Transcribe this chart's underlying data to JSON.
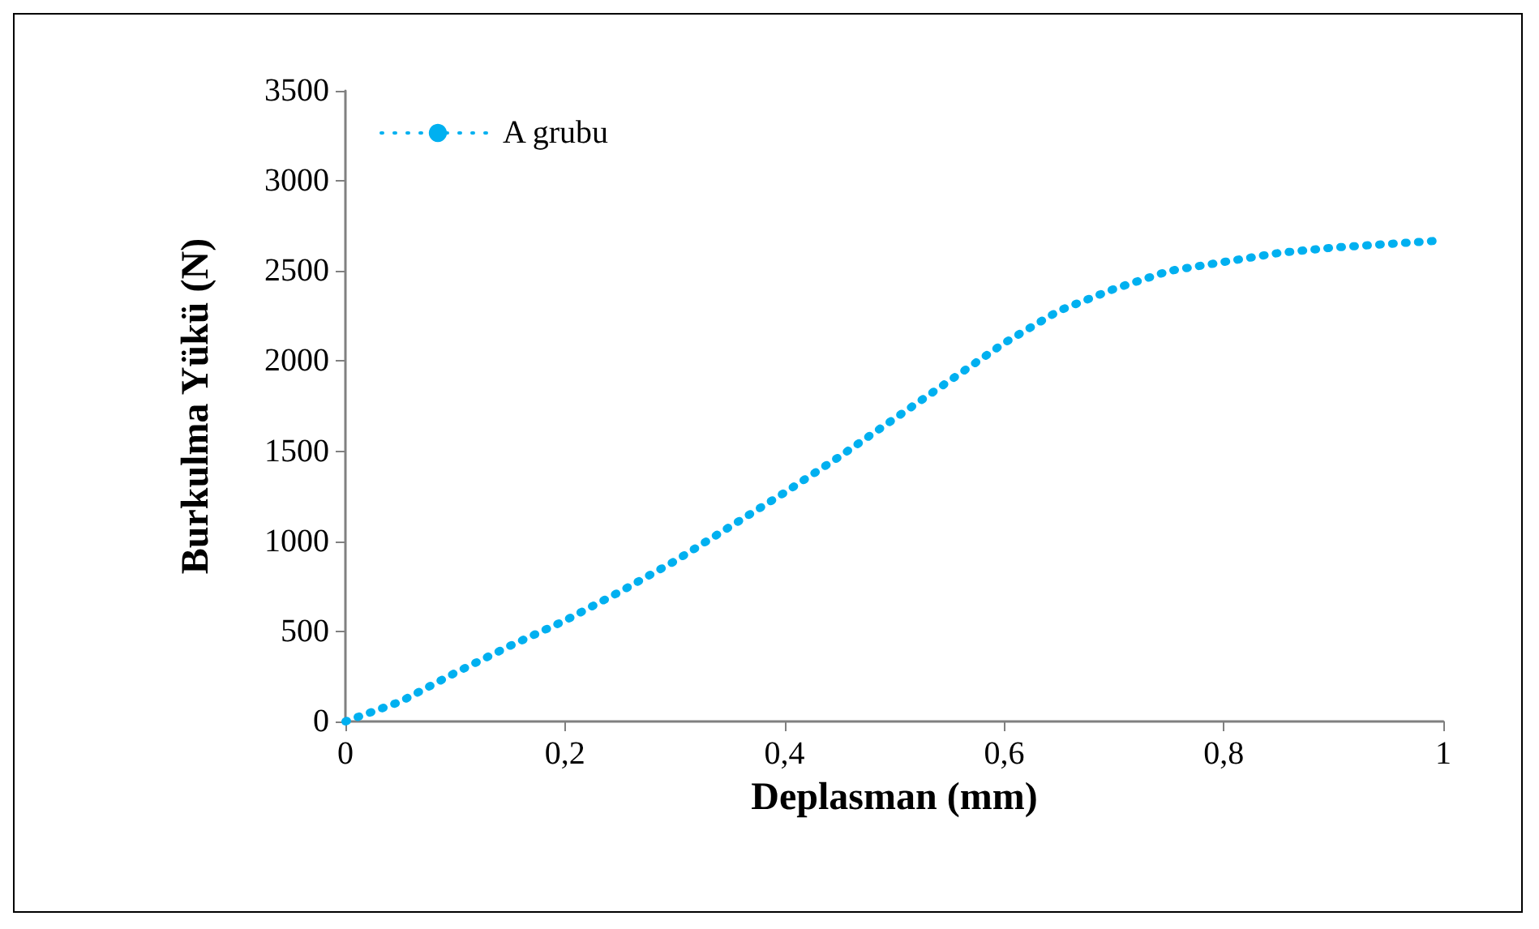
{
  "chart_data": {
    "type": "line",
    "xlabel": "Deplasman (mm)",
    "ylabel": "Burkulma Yükü (N)",
    "x": [
      0,
      0.05,
      0.1,
      0.15,
      0.2,
      0.25,
      0.3,
      0.35,
      0.4,
      0.45,
      0.5,
      0.55,
      0.6,
      0.65,
      0.7,
      0.75,
      0.8,
      0.85,
      0.9,
      0.95,
      1
    ],
    "series": [
      {
        "name": "A grubu",
        "color": "#00b0f0",
        "values": [
          0,
          110,
          270,
          420,
          560,
          720,
          890,
          1080,
          1270,
          1470,
          1680,
          1890,
          2100,
          2280,
          2400,
          2500,
          2550,
          2600,
          2630,
          2650,
          2670
        ]
      }
    ],
    "xlim": [
      0,
      1
    ],
    "xticks": [
      0,
      {
        "value": 0.2,
        "label": "0,2"
      },
      {
        "value": 0.4,
        "label": "0,4"
      },
      {
        "value": 0.6,
        "label": "0,6"
      },
      {
        "value": 0.8,
        "label": "0,8"
      },
      1
    ],
    "ylim": [
      0,
      3500
    ],
    "yticks": [
      0,
      500,
      1000,
      1500,
      2000,
      2500,
      3000,
      3500
    ],
    "grid": false,
    "legend": "top left",
    "marker": "none",
    "line_style": "dotted"
  }
}
